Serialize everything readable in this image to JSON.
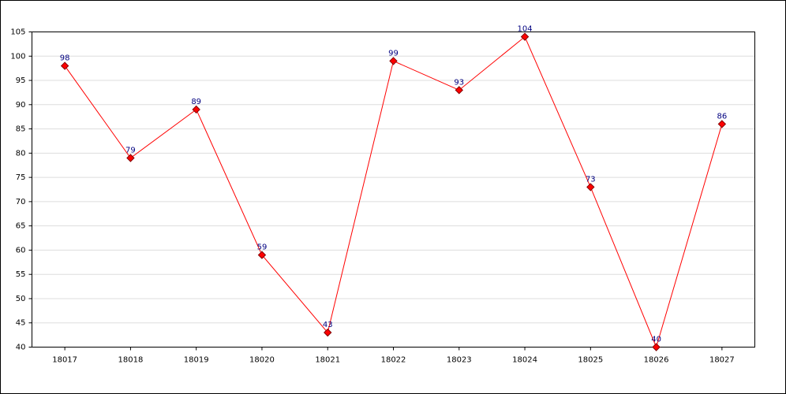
{
  "chart_data": {
    "type": "line",
    "categories": [
      "18017",
      "18018",
      "18019",
      "18020",
      "18021",
      "18022",
      "18023",
      "18024",
      "18025",
      "18026",
      "18027"
    ],
    "values": [
      98,
      79,
      89,
      59,
      43,
      99,
      93,
      104,
      73,
      40,
      86
    ],
    "color": "#ff0000",
    "ylim": [
      40,
      105
    ],
    "yticks": [
      40,
      45,
      50,
      55,
      60,
      65,
      70,
      75,
      80,
      85,
      90,
      95,
      100,
      105
    ],
    "grid": true
  }
}
